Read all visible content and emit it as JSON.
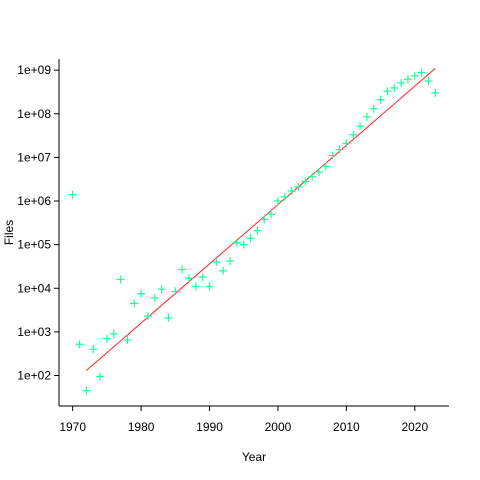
{
  "chart_data": {
    "type": "scatter",
    "title": "",
    "xlabel": "Year",
    "ylabel": "Files",
    "xlim": [
      1968,
      2025
    ],
    "ylim": [
      20,
      1800000000
    ],
    "y_scale": "log",
    "grid": false,
    "legend": "none",
    "x_ticks": [
      1970,
      1980,
      1990,
      2000,
      2010,
      2020
    ],
    "x_tick_labels": [
      "1970",
      "1980",
      "1990",
      "2000",
      "2010",
      "2020"
    ],
    "y_ticks": [
      100,
      1000,
      10000,
      100000,
      1000000,
      10000000,
      100000000,
      1000000000
    ],
    "y_tick_labels": [
      "1e+02",
      "1e+03",
      "1e+04",
      "1e+05",
      "1e+06",
      "1e+07",
      "1e+08",
      "1e+09"
    ],
    "marker_color": "#19ff9a",
    "fit_color": "#ff2020",
    "axis_color": "#000000",
    "points": {
      "x": [
        1970,
        1971,
        1972,
        1973,
        1974,
        1975,
        1976,
        1977,
        1978,
        1979,
        1980,
        1981,
        1982,
        1983,
        1984,
        1985,
        1986,
        1987,
        1988,
        1989,
        1990,
        1991,
        1992,
        1993,
        1994,
        1995,
        1996,
        1997,
        1998,
        1999,
        2000,
        2001,
        2002,
        2003,
        2004,
        2005,
        2006,
        2007,
        2008,
        2009,
        2010,
        2011,
        2012,
        2013,
        2014,
        2015,
        2016,
        2017,
        2018,
        2019,
        2020,
        2021,
        2022,
        2023
      ],
      "y": [
        1400000,
        520,
        45,
        400,
        95,
        700,
        900,
        16000,
        650,
        4500,
        7500,
        2300,
        6000,
        9500,
        2100,
        8500,
        27000,
        17000,
        11000,
        18000,
        11000,
        40000,
        25000,
        42000,
        110000,
        100000,
        140000,
        210000,
        380000,
        500000,
        1000000,
        1250000,
        1700000,
        2100000,
        2800000,
        3600000,
        4600000,
        6200000,
        11000000,
        15000000,
        21000000,
        33000000,
        52000000,
        85000000,
        130000000,
        210000000,
        330000000,
        390000000,
        510000000,
        620000000,
        740000000,
        880000000,
        560000000,
        300000000
      ]
    },
    "fit_line": {
      "x": [
        1972,
        2023
      ],
      "y": [
        130,
        1100000000
      ]
    }
  }
}
